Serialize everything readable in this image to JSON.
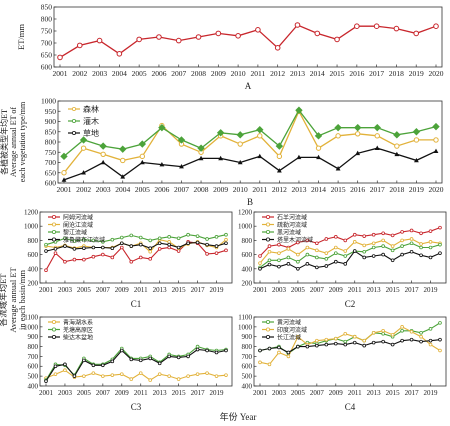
{
  "figure": {
    "xlabel_bottom": "年份 Year",
    "ylabel_c_zh": "各流域年均ET",
    "ylabel_c_en1": "Average annual ET",
    "ylabel_c_en2": "in each basin/mm"
  },
  "chart_data": [
    {
      "panel": "A",
      "type": "line",
      "ylabel": "ET/mm",
      "ylim": [
        600,
        850
      ],
      "yticks": [
        600,
        650,
        700,
        750,
        800,
        850
      ],
      "x": [
        2001,
        2002,
        2003,
        2004,
        2005,
        2006,
        2007,
        2008,
        2009,
        2010,
        2011,
        2012,
        2013,
        2014,
        2015,
        2016,
        2017,
        2018,
        2019,
        2020
      ],
      "xticks": [
        2001,
        2002,
        2003,
        2004,
        2005,
        2006,
        2007,
        2008,
        2009,
        2010,
        2011,
        2012,
        2013,
        2014,
        2015,
        2016,
        2017,
        2018,
        2019,
        2020
      ],
      "series": [
        {
          "name": "",
          "color": "#c8262c",
          "values": [
            640,
            690,
            710,
            655,
            715,
            725,
            710,
            725,
            740,
            730,
            755,
            680,
            775,
            740,
            715,
            770,
            770,
            760,
            740,
            770
          ]
        }
      ]
    },
    {
      "panel": "B",
      "type": "line",
      "ylabel_zh": "各植被类型年均ET",
      "ylabel_en1": "Average annual ET of",
      "ylabel_en2": "each vegetation type/mm",
      "ylim": [
        600,
        1000
      ],
      "yticks": [
        600,
        650,
        700,
        750,
        800,
        850,
        900,
        950,
        1000
      ],
      "x": [
        2001,
        2002,
        2003,
        2004,
        2005,
        2006,
        2007,
        2008,
        2009,
        2010,
        2011,
        2012,
        2013,
        2014,
        2015,
        2016,
        2017,
        2018,
        2019,
        2020
      ],
      "xticks": [
        2001,
        2002,
        2003,
        2004,
        2005,
        2006,
        2007,
        2008,
        2009,
        2010,
        2011,
        2012,
        2013,
        2014,
        2015,
        2016,
        2017,
        2018,
        2019,
        2020
      ],
      "legend_position": "top-left",
      "series": [
        {
          "name": "森林",
          "color": "#e2b23a",
          "values": [
            650,
            770,
            740,
            710,
            730,
            880,
            790,
            750,
            830,
            790,
            830,
            730,
            950,
            770,
            830,
            840,
            830,
            780,
            810,
            810
          ]
        },
        {
          "name": "灌木",
          "color": "#4ca33a",
          "values": [
            730,
            810,
            780,
            765,
            790,
            870,
            810,
            770,
            845,
            835,
            860,
            780,
            955,
            830,
            870,
            870,
            870,
            835,
            850,
            875
          ]
        },
        {
          "name": "草地",
          "color": "#111111",
          "values": [
            615,
            650,
            700,
            630,
            700,
            690,
            680,
            720,
            720,
            700,
            730,
            660,
            725,
            725,
            670,
            745,
            770,
            740,
            710,
            755
          ]
        }
      ]
    },
    {
      "panel": "C1",
      "type": "line",
      "ylim": [
        200,
        1200
      ],
      "yticks": [
        200,
        400,
        600,
        800,
        1000,
        1200
      ],
      "x": [
        2001,
        2002,
        2003,
        2004,
        2005,
        2006,
        2007,
        2008,
        2009,
        2010,
        2011,
        2012,
        2013,
        2014,
        2015,
        2016,
        2017,
        2018,
        2019,
        2020
      ],
      "xticks": [
        2001,
        2003,
        2005,
        2007,
        2009,
        2011,
        2013,
        2015,
        2017,
        2019
      ],
      "legend_position": "top-left",
      "series": [
        {
          "name": "阿姆河流域",
          "color": "#c8262c",
          "values": [
            380,
            620,
            500,
            530,
            530,
            570,
            600,
            560,
            700,
            500,
            560,
            540,
            680,
            700,
            650,
            780,
            760,
            610,
            620,
            660
          ]
        },
        {
          "name": "阑沧江流域",
          "color": "#e2b23a",
          "values": [
            720,
            700,
            730,
            690,
            720,
            700,
            700,
            700,
            760,
            720,
            760,
            640,
            810,
            780,
            690,
            750,
            780,
            730,
            700,
            810
          ]
        },
        {
          "name": "黎江流域",
          "color": "#4ca33a",
          "values": [
            740,
            780,
            830,
            790,
            810,
            800,
            780,
            810,
            840,
            870,
            840,
            800,
            830,
            850,
            830,
            880,
            860,
            820,
            850,
            880
          ]
        },
        {
          "name": "雅鲁藏布江流域",
          "color": "#111111",
          "values": [
            650,
            680,
            720,
            680,
            690,
            700,
            700,
            690,
            760,
            720,
            740,
            690,
            760,
            740,
            700,
            760,
            770,
            740,
            720,
            760
          ]
        }
      ]
    },
    {
      "panel": "C2",
      "type": "line",
      "ylim": [
        200,
        1200
      ],
      "yticks": [
        200,
        400,
        600,
        800,
        1000,
        1200
      ],
      "x": [
        2001,
        2002,
        2003,
        2004,
        2005,
        2006,
        2007,
        2008,
        2009,
        2010,
        2011,
        2012,
        2013,
        2014,
        2015,
        2016,
        2017,
        2018,
        2019,
        2020
      ],
      "xticks": [
        2001,
        2003,
        2005,
        2007,
        2009,
        2011,
        2013,
        2015,
        2017,
        2019
      ],
      "legend_position": "top-left",
      "series": [
        {
          "name": "石羊河流域",
          "color": "#c8262c",
          "values": [
            580,
            720,
            740,
            700,
            770,
            800,
            760,
            820,
            850,
            800,
            880,
            860,
            880,
            900,
            870,
            920,
            940,
            900,
            930,
            980
          ]
        },
        {
          "name": "疏勒河流域",
          "color": "#e2b23a",
          "values": [
            480,
            640,
            620,
            680,
            600,
            700,
            660,
            620,
            700,
            650,
            780,
            730,
            760,
            800,
            720,
            800,
            820,
            750,
            780,
            760
          ]
        },
        {
          "name": "黑河流域",
          "color": "#4ca33a",
          "values": [
            420,
            520,
            520,
            560,
            500,
            600,
            560,
            540,
            620,
            580,
            650,
            640,
            700,
            720,
            660,
            720,
            760,
            700,
            700,
            740
          ]
        },
        {
          "name": "塔里木河流域",
          "color": "#111111",
          "values": [
            400,
            460,
            430,
            470,
            400,
            470,
            420,
            440,
            500,
            470,
            650,
            560,
            580,
            600,
            520,
            600,
            640,
            590,
            560,
            620
          ]
        }
      ]
    },
    {
      "panel": "C3",
      "type": "line",
      "ylim": [
        400,
        1100
      ],
      "yticks": [
        400,
        500,
        600,
        700,
        800,
        900,
        1000,
        1100
      ],
      "x": [
        2001,
        2002,
        2003,
        2004,
        2005,
        2006,
        2007,
        2008,
        2009,
        2010,
        2011,
        2012,
        2013,
        2014,
        2015,
        2016,
        2017,
        2018,
        2019,
        2020
      ],
      "xticks": [
        2001,
        2003,
        2005,
        2007,
        2009,
        2011,
        2013,
        2015,
        2017,
        2019
      ],
      "legend_position": "top-left",
      "series": [
        {
          "name": "青海湖水系",
          "color": "#e2b23a",
          "values": [
            480,
            520,
            560,
            490,
            500,
            530,
            500,
            510,
            520,
            470,
            530,
            460,
            520,
            500,
            470,
            500,
            520,
            530,
            500,
            510
          ]
        },
        {
          "name": "羌塘高原区",
          "color": "#4ca33a",
          "values": [
            460,
            620,
            610,
            510,
            680,
            620,
            620,
            670,
            780,
            680,
            680,
            700,
            640,
            720,
            700,
            720,
            800,
            770,
            760,
            770
          ]
        },
        {
          "name": "柴达木盆地",
          "color": "#111111",
          "values": [
            450,
            600,
            620,
            500,
            660,
            610,
            610,
            650,
            760,
            670,
            660,
            680,
            630,
            700,
            690,
            700,
            770,
            760,
            740,
            760
          ]
        }
      ]
    },
    {
      "panel": "C4",
      "type": "line",
      "ylim": [
        400,
        1100
      ],
      "yticks": [
        400,
        500,
        600,
        700,
        800,
        900,
        1000,
        1100
      ],
      "x": [
        2001,
        2002,
        2003,
        2004,
        2005,
        2006,
        2007,
        2008,
        2009,
        2010,
        2011,
        2012,
        2013,
        2014,
        2015,
        2016,
        2017,
        2018,
        2019,
        2020
      ],
      "xticks": [
        2001,
        2003,
        2005,
        2007,
        2009,
        2011,
        2013,
        2015,
        2017,
        2019
      ],
      "legend_position": "top-left",
      "series": [
        {
          "name": "黄河流域",
          "color": "#4ca33a",
          "values": [
            760,
            780,
            800,
            730,
            800,
            840,
            830,
            860,
            880,
            850,
            900,
            860,
            940,
            930,
            900,
            960,
            960,
            940,
            980,
            1040
          ]
        },
        {
          "name": "印度河流域",
          "color": "#e2b23a",
          "values": [
            640,
            620,
            740,
            700,
            900,
            820,
            860,
            870,
            880,
            930,
            900,
            860,
            940,
            960,
            920,
            1000,
            950,
            900,
            820,
            760
          ]
        },
        {
          "name": "长江流域",
          "color": "#111111",
          "values": [
            760,
            780,
            790,
            740,
            800,
            800,
            810,
            820,
            830,
            820,
            840,
            810,
            840,
            850,
            820,
            860,
            870,
            850,
            860,
            870
          ]
        }
      ]
    }
  ]
}
